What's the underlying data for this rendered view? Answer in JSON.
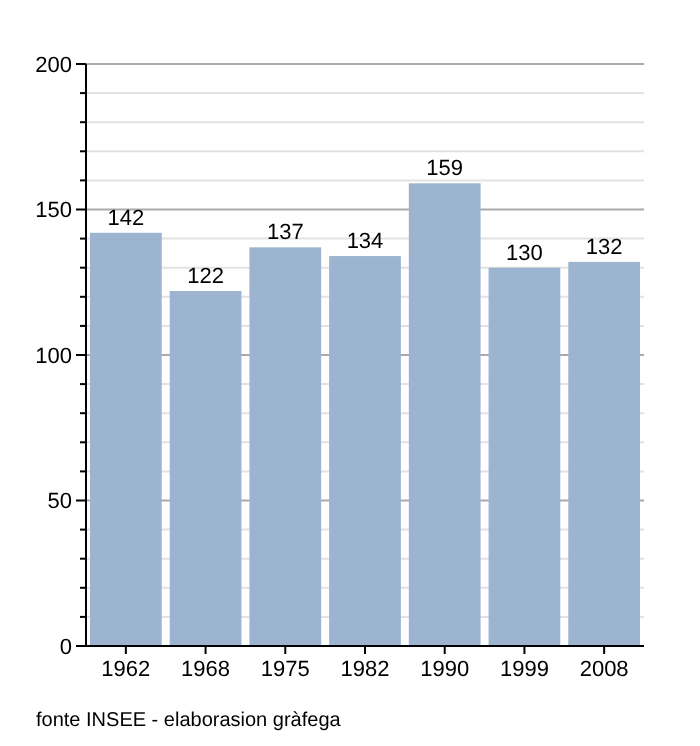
{
  "chart_data": {
    "type": "bar",
    "categories": [
      "1962",
      "1968",
      "1975",
      "1982",
      "1990",
      "1999",
      "2008"
    ],
    "values": [
      142,
      122,
      137,
      134,
      159,
      130,
      132
    ],
    "color": "#9cb4cf",
    "data_labels": true,
    "grid": "y",
    "ylim": [
      0,
      200
    ],
    "yticks": [
      0,
      {
        "value": 10,
        "label": null
      },
      {
        "value": 20,
        "label": null
      },
      {
        "value": 30,
        "label": null
      },
      {
        "value": 40,
        "label": null
      },
      50,
      {
        "value": 60,
        "label": null
      },
      {
        "value": 70,
        "label": null
      },
      {
        "value": 80,
        "label": null
      },
      {
        "value": 90,
        "label": null
      },
      100,
      {
        "value": 110,
        "label": null
      },
      {
        "value": 120,
        "label": null
      },
      {
        "value": 130,
        "label": null
      },
      {
        "value": 140,
        "label": null
      },
      150,
      {
        "value": 160,
        "label": null
      },
      {
        "value": 170,
        "label": null
      },
      {
        "value": 180,
        "label": null
      },
      {
        "value": 190,
        "label": null
      },
      200
    ],
    "annotations": [
      "fonte INSEE - elaborasion gràfega"
    ]
  }
}
